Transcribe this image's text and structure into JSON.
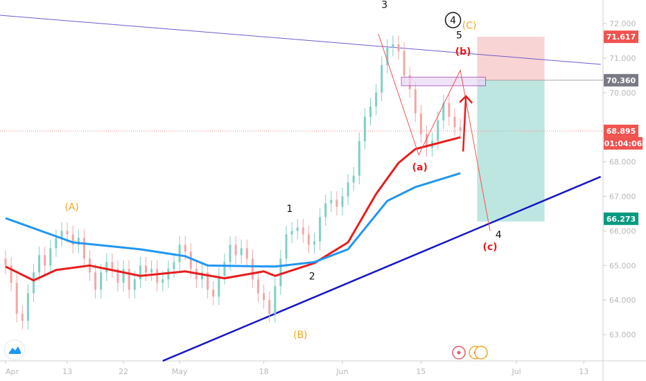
{
  "chart_data": {
    "type": "candlestick",
    "price_axis": {
      "min": 62.2,
      "max": 72.6,
      "ticks": [
        "72.000",
        "71.000",
        "70.000",
        "68.000",
        "67.000",
        "66.000",
        "65.000",
        "64.000",
        "63.000"
      ],
      "tick_values": [
        72,
        71,
        70,
        68,
        67,
        66,
        65,
        64,
        63
      ]
    },
    "time_axis": {
      "labels": [
        "Apr",
        "13",
        "22",
        "May",
        "18",
        "Jun",
        "15",
        "Jul",
        "13"
      ],
      "label_bar_index": [
        0,
        11,
        21,
        31,
        46,
        60,
        74,
        91,
        103
      ]
    },
    "closes": [
      65.0,
      64.5,
      63.6,
      63.4,
      64.2,
      64.8,
      65.3,
      65.0,
      65.5,
      65.8,
      66.0,
      65.9,
      65.6,
      65.8,
      65.2,
      64.8,
      64.3,
      64.8,
      65.1,
      64.9,
      64.5,
      64.9,
      64.3,
      64.6,
      65.0,
      64.8,
      64.9,
      64.5,
      64.6,
      64.9,
      65.1,
      65.6,
      65.4,
      64.9,
      64.6,
      64.8,
      64.3,
      64.1,
      64.7,
      65.1,
      65.6,
      65.3,
      65.5,
      65.2,
      64.6,
      64.2,
      64.0,
      63.6,
      64.4,
      65.2,
      65.9,
      66.0,
      66.1,
      65.9,
      65.6,
      65.7,
      66.4,
      66.8,
      66.9,
      66.7,
      67.0,
      67.4,
      67.6,
      68.6,
      69.3,
      69.6,
      70.0,
      70.8,
      71.3,
      71.4,
      71.2,
      70.5,
      70.1,
      69.4,
      68.8,
      68.4,
      68.6,
      69.2,
      69.7,
      69.3,
      69.0,
      68.9
    ],
    "moving_averages": [
      {
        "color": "#e81c1c",
        "points": [
          [
            0,
            64.97
          ],
          [
            5,
            64.57
          ],
          [
            9,
            64.87
          ],
          [
            15,
            65.0
          ],
          [
            24,
            64.7
          ],
          [
            32,
            64.83
          ],
          [
            39,
            64.63
          ],
          [
            46,
            64.83
          ],
          [
            48,
            64.7
          ],
          [
            55,
            65.07
          ],
          [
            61,
            65.67
          ],
          [
            66,
            67.07
          ],
          [
            70,
            67.97
          ],
          [
            73,
            68.37
          ],
          [
            81,
            68.71
          ]
        ]
      },
      {
        "color": "#2196f3",
        "points": [
          [
            0,
            66.37
          ],
          [
            12,
            65.67
          ],
          [
            24,
            65.47
          ],
          [
            32,
            65.27
          ],
          [
            36,
            65.0
          ],
          [
            48,
            64.97
          ],
          [
            55,
            65.1
          ],
          [
            61,
            65.47
          ],
          [
            63,
            65.87
          ],
          [
            68,
            66.87
          ],
          [
            73,
            67.27
          ],
          [
            81,
            67.67
          ]
        ]
      }
    ],
    "trendlines": [
      {
        "color": "#6a5acd",
        "from": [
          -1,
          72.24
        ],
        "to": [
          106,
          70.82
        ]
      },
      {
        "color": "#1515c8",
        "from": [
          28,
          62.24
        ],
        "to": [
          106,
          67.57
        ]
      }
    ],
    "position": {
      "target": 71.617,
      "entry": 70.36,
      "stop": 66.273,
      "start_bar": 84,
      "end_bar": 96
    },
    "zone": {
      "top": 70.45,
      "bottom": 70.2,
      "start_bar": 70.5,
      "end_bar": 85.5
    },
    "wave_path": [
      [
        66.4,
        71.7
      ],
      [
        73.6,
        68.2
      ],
      [
        81,
        70.65
      ],
      [
        86.3,
        66.0
      ]
    ],
    "arrow": {
      "from": [
        81.5,
        68.3
      ],
      "to": [
        82,
        69.9
      ]
    },
    "current_price": "68.895",
    "countdown": "01:04:06",
    "price_tags": [
      {
        "value": "71.617",
        "price": 71.617,
        "color": "#f05350"
      },
      {
        "value": "70.360",
        "price": 70.36,
        "color": "#787b86"
      },
      {
        "value": "66.273",
        "price": 66.273,
        "color": "#089981"
      }
    ],
    "wave_labels": [
      {
        "text": "3",
        "bar": 67.5,
        "price": 72.45,
        "color": "#111"
      },
      {
        "text": "4",
        "bar": 79.7,
        "price": 72.0,
        "color": "#111",
        "circled": true
      },
      {
        "text": "(C)",
        "bar": 81.5,
        "price": 71.85,
        "color": "#f5a623"
      },
      {
        "text": "5",
        "bar": 80.8,
        "price": 71.75,
        "color": "#111"
      },
      {
        "text": "(b)",
        "bar": 81.5,
        "price": 71.1,
        "color": "#e81c1c",
        "bold": true
      },
      {
        "text": "(a)",
        "bar": 73.8,
        "price": 67.75,
        "color": "#e81c1c",
        "bold": true
      },
      {
        "text": "(c)",
        "bar": 86.3,
        "price": 65.45,
        "color": "#e81c1c",
        "bold": true
      },
      {
        "text": "4",
        "bar": 87.8,
        "price": 65.8,
        "color": "#111"
      },
      {
        "text": "1",
        "bar": 50.6,
        "price": 66.55,
        "color": "#111"
      },
      {
        "text": "2",
        "bar": 54.6,
        "price": 64.6,
        "color": "#111"
      },
      {
        "text": "(A)",
        "bar": 11.8,
        "price": 66.6,
        "color": "#f5a623"
      },
      {
        "text": "(B)",
        "bar": 52.5,
        "price": 62.9,
        "color": "#f5a623"
      }
    ],
    "bar_colors": {
      "up": "#7fcfc4",
      "down": "#f2a7a5"
    }
  }
}
